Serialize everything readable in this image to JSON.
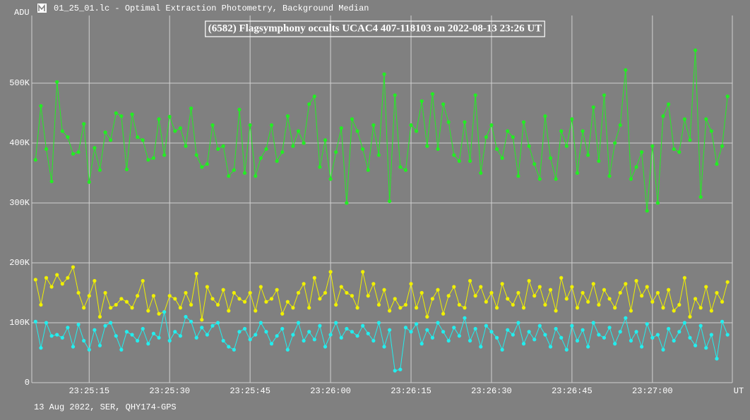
{
  "chart_data": {
    "type": "line",
    "window_title": "01_25_01.lc - Optimal Extraction Photometry, Background Median",
    "title": "(6582) Flagsymphony occults UCAC4 407-118103 on 2022-08-13 23:26 UT",
    "ylabel": "ADU",
    "xlabel": "UT",
    "footer": "13 Aug 2022, SER, QHY174-GPS",
    "grid": true,
    "xlim": [
      84304.3,
      84434.9
    ],
    "ylim": [
      0,
      613000
    ],
    "xticks": [
      {
        "value": 84315,
        "label": "23:25:15"
      },
      {
        "value": 84330,
        "label": "23:25:30"
      },
      {
        "value": 84345,
        "label": "23:25:45"
      },
      {
        "value": 84360,
        "label": "23:26:00"
      },
      {
        "value": 84375,
        "label": "23:26:15"
      },
      {
        "value": 84390,
        "label": "23:26:30"
      },
      {
        "value": 84405,
        "label": "23:26:45"
      },
      {
        "value": 84420,
        "label": "23:27:00"
      }
    ],
    "yticks": [
      0,
      {
        "value": 100000,
        "label": "100K"
      },
      {
        "value": 200000,
        "label": "200K"
      },
      {
        "value": 300000,
        "label": "300K"
      },
      {
        "value": 400000,
        "label": "400K"
      },
      {
        "value": 500000,
        "label": "500K"
      }
    ],
    "x": [
      84305,
      84306,
      84307,
      84308,
      84309,
      84310,
      84311,
      84312,
      84313,
      84314,
      84315,
      84316,
      84317,
      84318,
      84319,
      84320,
      84321,
      84322,
      84323,
      84324,
      84325,
      84326,
      84327,
      84328,
      84329,
      84330,
      84331,
      84332,
      84333,
      84334,
      84335,
      84336,
      84337,
      84338,
      84339,
      84340,
      84341,
      84342,
      84343,
      84344,
      84345,
      84346,
      84347,
      84348,
      84349,
      84350,
      84351,
      84352,
      84353,
      84354,
      84355,
      84356,
      84357,
      84358,
      84359,
      84360,
      84361,
      84362,
      84363,
      84364,
      84365,
      84366,
      84367,
      84368,
      84369,
      84370,
      84371,
      84372,
      84373,
      84374,
      84375,
      84376,
      84377,
      84378,
      84379,
      84380,
      84381,
      84382,
      84383,
      84384,
      84385,
      84386,
      84387,
      84388,
      84389,
      84390,
      84391,
      84392,
      84393,
      84394,
      84395,
      84396,
      84397,
      84398,
      84399,
      84400,
      84401,
      84402,
      84403,
      84404,
      84405,
      84406,
      84407,
      84408,
      84409,
      84410,
      84411,
      84412,
      84413,
      84414,
      84415,
      84416,
      84417,
      84418,
      84419,
      84420,
      84421,
      84422,
      84423,
      84424,
      84425,
      84426,
      84427,
      84428,
      84429,
      84430,
      84431,
      84432,
      84433,
      84434
    ],
    "series": [
      {
        "color": "#22ee22",
        "values": [
          372000,
          462000,
          390000,
          336000,
          502000,
          420000,
          410000,
          382000,
          385000,
          432000,
          335000,
          392000,
          355000,
          418000,
          405000,
          450000,
          445000,
          356000,
          448000,
          410000,
          405000,
          372000,
          375000,
          440000,
          380000,
          444000,
          420000,
          425000,
          395000,
          458000,
          380000,
          360000,
          365000,
          430000,
          390000,
          395000,
          345000,
          355000,
          456000,
          350000,
          430000,
          345000,
          375000,
          390000,
          430000,
          370000,
          385000,
          445000,
          395000,
          420000,
          400000,
          465000,
          478000,
          360000,
          405000,
          340000,
          385000,
          425000,
          300000,
          440000,
          420000,
          390000,
          355000,
          430000,
          380000,
          515000,
          303000,
          480000,
          360000,
          355000,
          430000,
          420000,
          470000,
          395000,
          482000,
          390000,
          465000,
          435000,
          380000,
          370000,
          435000,
          370000,
          480000,
          350000,
          410000,
          430000,
          390000,
          375000,
          420000,
          410000,
          345000,
          435000,
          395000,
          365000,
          340000,
          445000,
          375000,
          340000,
          420000,
          395000,
          440000,
          350000,
          420000,
          380000,
          460000,
          370000,
          480000,
          345000,
          400000,
          430000,
          522000,
          340000,
          360000,
          385000,
          287000,
          395000,
          300000,
          445000,
          465000,
          390000,
          385000,
          440000,
          405000,
          555000,
          310000,
          440000,
          420000,
          365000,
          395000,
          478000
        ]
      },
      {
        "color": "#f0f000",
        "values": [
          172000,
          130000,
          175000,
          160000,
          180000,
          165000,
          175000,
          193000,
          150000,
          125000,
          145000,
          170000,
          110000,
          150000,
          125000,
          130000,
          140000,
          135000,
          125000,
          145000,
          170000,
          120000,
          145000,
          115000,
          118000,
          145000,
          140000,
          125000,
          150000,
          130000,
          182000,
          105000,
          160000,
          140000,
          130000,
          155000,
          120000,
          150000,
          140000,
          135000,
          150000,
          120000,
          160000,
          135000,
          140000,
          155000,
          115000,
          135000,
          125000,
          150000,
          165000,
          125000,
          175000,
          140000,
          150000,
          185000,
          130000,
          160000,
          150000,
          145000,
          125000,
          185000,
          145000,
          165000,
          130000,
          155000,
          120000,
          140000,
          125000,
          130000,
          165000,
          125000,
          150000,
          110000,
          140000,
          155000,
          115000,
          145000,
          160000,
          130000,
          125000,
          170000,
          145000,
          160000,
          135000,
          150000,
          125000,
          165000,
          140000,
          130000,
          150000,
          125000,
          170000,
          145000,
          160000,
          130000,
          155000,
          120000,
          175000,
          140000,
          160000,
          125000,
          150000,
          135000,
          165000,
          130000,
          155000,
          140000,
          125000,
          150000,
          165000,
          120000,
          170000,
          145000,
          160000,
          135000,
          150000,
          125000,
          155000,
          120000,
          130000,
          175000,
          110000,
          140000,
          125000,
          160000,
          120000,
          150000,
          135000,
          168000
        ]
      },
      {
        "color": "#22eeee",
        "values": [
          102000,
          58000,
          100000,
          78000,
          80000,
          75000,
          92000,
          60000,
          97000,
          70000,
          55000,
          88000,
          62000,
          95000,
          100000,
          78000,
          55000,
          85000,
          80000,
          70000,
          90000,
          65000,
          82000,
          75000,
          118000,
          70000,
          85000,
          78000,
          110000,
          102000,
          75000,
          92000,
          80000,
          95000,
          100000,
          70000,
          60000,
          55000,
          85000,
          90000,
          72000,
          80000,
          100000,
          85000,
          65000,
          78000,
          90000,
          55000,
          80000,
          100000,
          70000,
          85000,
          72000,
          95000,
          60000,
          80000,
          100000,
          75000,
          90000,
          85000,
          78000,
          95000,
          82000,
          70000,
          100000,
          60000,
          88000,
          20000,
          22000,
          92000,
          85000,
          98000,
          65000,
          88000,
          75000,
          100000,
          85000,
          70000,
          92000,
          78000,
          108000,
          70000,
          90000,
          60000,
          95000,
          85000,
          75000,
          55000,
          88000,
          80000,
          100000,
          65000,
          85000,
          72000,
          95000,
          80000,
          60000,
          90000,
          75000,
          55000,
          95000,
          70000,
          88000,
          60000,
          100000,
          80000,
          75000,
          92000,
          65000,
          85000,
          108000,
          70000,
          85000,
          60000,
          98000,
          75000,
          80000,
          55000,
          90000,
          70000,
          85000,
          100000,
          75000,
          62000,
          95000,
          58000,
          80000,
          40000,
          102000,
          80000
        ]
      }
    ]
  }
}
